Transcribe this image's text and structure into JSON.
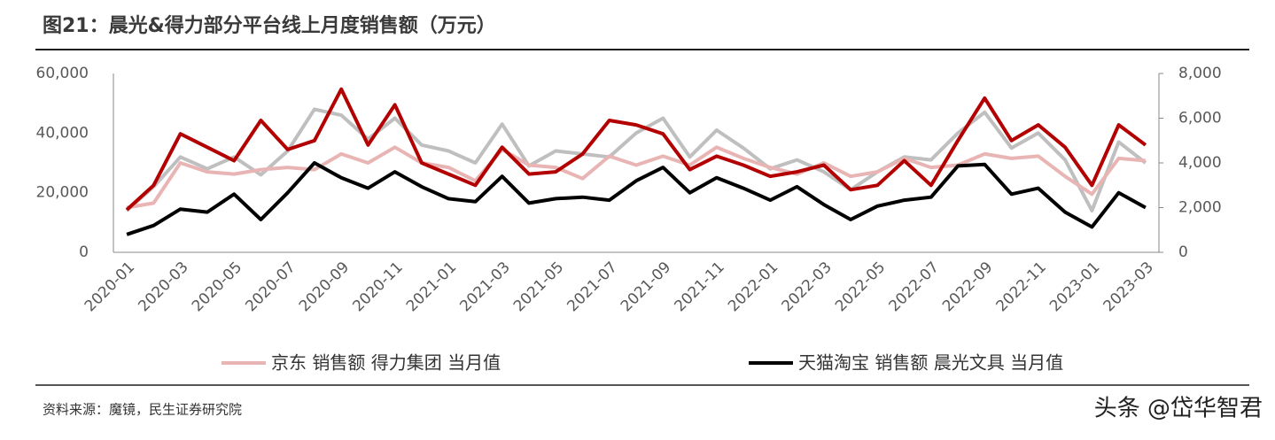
{
  "chart_data": {
    "type": "line",
    "title": "图21：晨光&得力部分平台线上月度销售额（万元）",
    "source": "资料来源：魔镜，民生证券研究院",
    "watermark": "头条 @岱华智君",
    "categories": [
      "2020-01",
      null,
      "2020-03",
      null,
      "2020-05",
      null,
      "2020-07",
      null,
      "2020-09",
      null,
      "2020-11",
      null,
      "2021-01",
      null,
      "2021-03",
      null,
      "2021-05",
      null,
      "2021-07",
      null,
      "2021-09",
      null,
      "2021-11",
      null,
      "2022-01",
      null,
      "2022-03",
      null,
      "2022-05",
      null,
      "2022-07",
      null,
      "2022-09",
      null,
      "2022-11",
      null,
      "2023-01",
      null,
      "2023-03"
    ],
    "ylim": [
      0,
      60000
    ],
    "yticks": [
      0,
      {
        "value": 20000,
        "label": "20,000"
      },
      {
        "value": 40000,
        "label": "40,000"
      },
      {
        "value": 60000,
        "label": "60,000"
      }
    ],
    "y2lim": [
      0,
      8000
    ],
    "y2ticks": [
      0,
      {
        "value": 2000,
        "label": "2,000"
      },
      {
        "value": 4000,
        "label": "4,000"
      },
      {
        "value": 6000,
        "label": "6,000"
      },
      {
        "value": 8000,
        "label": "8,000"
      }
    ],
    "series": [
      {
        "color": "#bfbfbf",
        "values": [
          14000,
          22000,
          32000,
          28000,
          32000,
          26000,
          34000,
          48000,
          46000,
          38000,
          45000,
          36000,
          34000,
          30000,
          43000,
          29000,
          34000,
          33000,
          32000,
          40000,
          45000,
          32000,
          41000,
          35000,
          28000,
          31000,
          27000,
          21000,
          27000,
          32000,
          31000,
          40000,
          47000,
          35000,
          40000,
          31000,
          14000,
          37000,
          30000
        ]
      },
      {
        "color": "#e8b4b4",
        "axis": "y2",
        "name": "京东 销售额 得力集团 当月值",
        "values": [
          2000,
          2200,
          4000,
          3600,
          3500,
          3700,
          3800,
          3700,
          4400,
          4000,
          4700,
          4000,
          3800,
          3200,
          4600,
          3900,
          3800,
          3300,
          4300,
          3900,
          4300,
          3900,
          4700,
          4200,
          3800,
          3500,
          4000,
          3400,
          3600,
          4200,
          3800,
          3900,
          4400,
          4200,
          4300,
          3400,
          2600,
          4200,
          4100
        ]
      },
      {
        "color": "#b30000",
        "axis": "y2",
        "values": [
          1900,
          3000,
          5300,
          4700,
          4100,
          5900,
          4600,
          5000,
          7300,
          4800,
          6600,
          4000,
          3500,
          3000,
          4700,
          3500,
          3600,
          4400,
          5900,
          5700,
          5300,
          3700,
          4300,
          3900,
          3400,
          3600,
          3900,
          2800,
          3000,
          4100,
          3000,
          5000,
          6900,
          5000,
          5700,
          4700,
          3000,
          5700,
          4800
        ]
      },
      {
        "color": "#000000",
        "name": "天猫淘宝 销售额 晨光文具 当月值",
        "values": [
          6000,
          9000,
          14500,
          13500,
          19500,
          11000,
          20000,
          30000,
          25000,
          21500,
          27000,
          22000,
          18000,
          17000,
          25500,
          16500,
          18000,
          18500,
          17500,
          24000,
          28500,
          20000,
          25000,
          21500,
          17500,
          22000,
          16000,
          11000,
          15500,
          17500,
          18500,
          29000,
          29500,
          19500,
          21500,
          13500,
          8500,
          20000,
          15000
        ]
      }
    ]
  }
}
